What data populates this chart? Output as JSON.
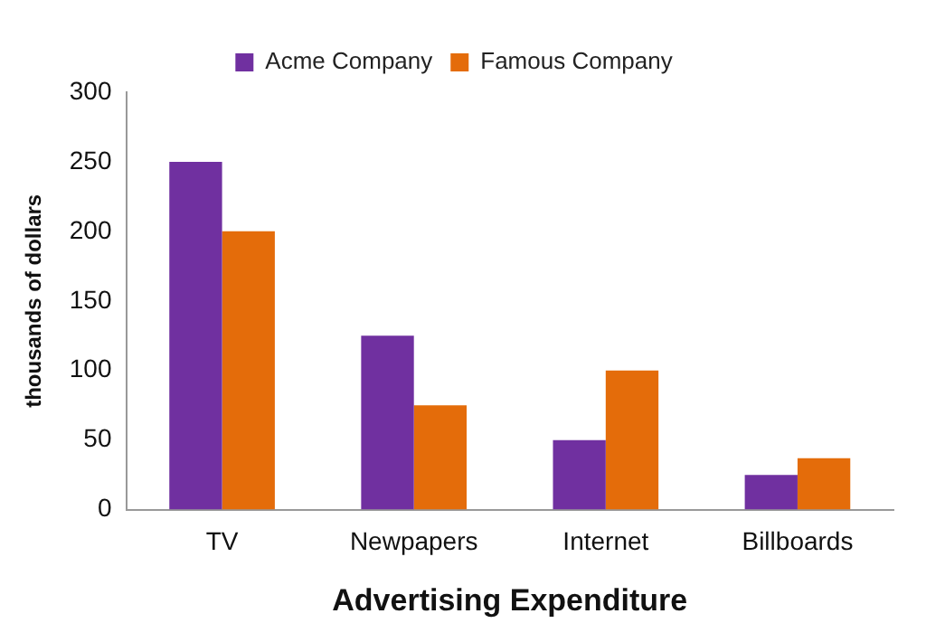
{
  "chart_data": {
    "type": "bar",
    "xlabel": "Advertising Expenditure",
    "ylabel": "thousands of dollars",
    "categories": [
      "TV",
      "Newpapers",
      "Internet",
      "Billboards"
    ],
    "series": [
      {
        "name": "Acme Company",
        "color": "#7030a0",
        "values": [
          250,
          125,
          50,
          25
        ]
      },
      {
        "name": "Famous Company",
        "color": "#e46c0a",
        "values": [
          200,
          75,
          100,
          37
        ]
      }
    ],
    "ylim": [
      0,
      300
    ],
    "yticks": [
      0,
      50,
      100,
      150,
      200,
      250,
      300
    ],
    "grid": false,
    "legend": "top"
  }
}
